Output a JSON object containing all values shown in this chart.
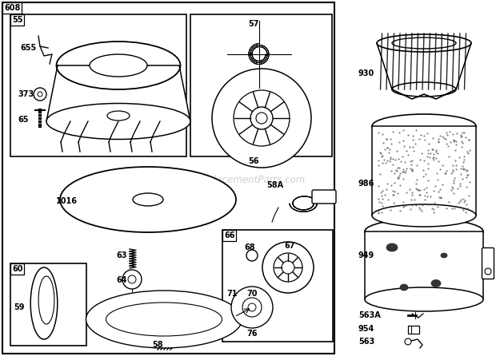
{
  "bg_color": "#ffffff",
  "watermark": "eReplacementParts.com"
}
